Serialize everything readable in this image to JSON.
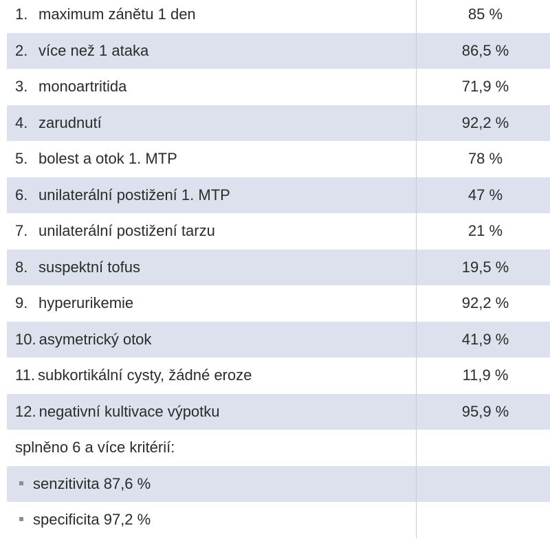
{
  "table": {
    "rows": [
      {
        "num": "1.",
        "label": "maximum zánětu 1 den",
        "value": "85 %"
      },
      {
        "num": "2.",
        "label": "více než 1 ataka",
        "value": "86,5 %"
      },
      {
        "num": "3.",
        "label": "monoartritida",
        "value": "71,9 %"
      },
      {
        "num": "4.",
        "label": "zarudnutí",
        "value": "92,2 %"
      },
      {
        "num": "5.",
        "label": "bolest a otok 1. MTP",
        "value": "78 %"
      },
      {
        "num": "6.",
        "label": "unilaterální postižení 1. MTP",
        "value": "47 %"
      },
      {
        "num": "7.",
        "label": "unilaterální postižení tarzu",
        "value": "21 %"
      },
      {
        "num": "8.",
        "label": "suspektní tofus",
        "value": "19,5 %"
      },
      {
        "num": "9.",
        "label": "hyperurikemie",
        "value": "92,2 %"
      },
      {
        "num": "10.",
        "label": "asymetrický otok",
        "value": "41,9 %"
      },
      {
        "num": "11.",
        "label": "subkortikální cysty, žádné eroze",
        "value": "11,9 %"
      },
      {
        "num": "12.",
        "label": "negativní kultivace výpotku",
        "value": "95,9 %"
      }
    ],
    "summary_label": "splněno 6 a více kritérií:",
    "bullets": [
      "senzitivita 87,6 %",
      "specificita 97,2 %"
    ]
  },
  "colors": {
    "shaded_row": "#dde1ee",
    "plain_row": "#ffffff",
    "text": "#2b2b2b"
  }
}
